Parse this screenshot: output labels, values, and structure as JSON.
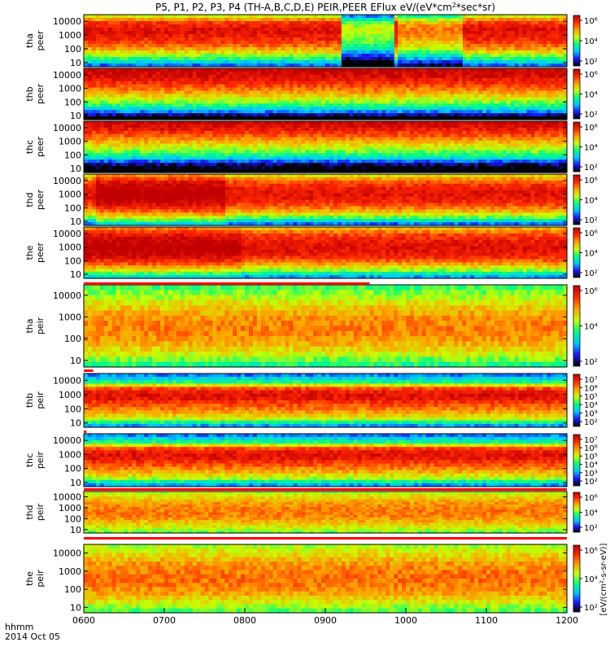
{
  "chart_data": {
    "type": "heatmap",
    "title": "P5, P1, P2, P3, P4 (TH-A,B,C,D,E) PEIR,PEER EFlux eV/(eV*cm²*sec*sr)",
    "title_main": "P5, P1, P2, P3, P4 (TH-A,B,C,D,E) PEIR,PEER EFlux eV/(eV*cm",
    "title_sup": "2",
    "title_end": "*sec*sr)",
    "xlabel_line1": "hhmm",
    "xlabel_line2": "2014 Oct 05",
    "x_ticks": [
      "0600",
      "0700",
      "0800",
      "0900",
      "1000",
      "1100",
      "1200"
    ],
    "xlim": [
      "06:00",
      "12:00"
    ],
    "y_ticks": [
      "10000",
      "1000",
      "100",
      "10"
    ],
    "ylim": [
      5,
      30000
    ],
    "yscale": "log",
    "colorbar_label": "[eV/(cm²-s-sr-eV)]",
    "colorbar_scale": "log",
    "colors": {
      "flux_scale": [
        "#000000",
        "#1a1aff",
        "#00c8ff",
        "#00ff80",
        "#c8ff00",
        "#ffa000",
        "#ff2800",
        "#c00000"
      ],
      "flag_bar": "#ff0000",
      "frame": "#000000"
    },
    "panels": [
      {
        "probe": "tha",
        "species": "peer",
        "colorbar_ticks": [
          "10⁶",
          "10⁴",
          "10²"
        ],
        "energy_profile": [
          1.5,
          3.2,
          4.6,
          5.7,
          6.3,
          6.6,
          6.1,
          4.2
        ],
        "events": [
          {
            "start": "09:14",
            "end": "09:50",
            "dy": -2.5
          },
          {
            "start": "09:56",
            "end": "10:42",
            "dy": -1.2
          }
        ]
      },
      {
        "probe": "thb",
        "species": "peer",
        "colorbar_ticks": [
          "10⁶",
          "10⁴",
          "10²"
        ],
        "energy_profile": [
          -0.5,
          1.8,
          3.3,
          4.3,
          5.2,
          6.0,
          6.6,
          6.9
        ],
        "events": []
      },
      {
        "probe": "thc",
        "species": "peer",
        "colorbar_ticks": [
          "10⁶",
          "10⁴",
          "10²"
        ],
        "energy_profile": [
          -0.5,
          0.5,
          2.6,
          3.7,
          4.6,
          5.5,
          6.3,
          6.9
        ],
        "events": []
      },
      {
        "probe": "thd",
        "species": "peer",
        "colorbar_ticks": [
          "10⁶",
          "10⁴",
          "10²"
        ],
        "energy_profile": [
          1.5,
          3.6,
          5.0,
          6.0,
          6.5,
          6.4,
          5.8,
          4.4
        ],
        "events": [
          {
            "start": "06:10",
            "end": "07:45",
            "dy": 0.8
          }
        ]
      },
      {
        "probe": "the",
        "species": "peer",
        "colorbar_ticks": [
          "10⁶",
          "10⁴",
          "10²"
        ],
        "energy_profile": [
          1.8,
          3.8,
          5.2,
          6.2,
          6.6,
          6.4,
          5.9,
          4.8
        ],
        "events": [
          {
            "start": "06:00",
            "end": "07:55",
            "dy": 0.6
          }
        ]
      },
      {
        "probe": "tha",
        "species": "peir",
        "colorbar_ticks": [
          "10⁶",
          "10⁴",
          "10²"
        ],
        "energy_profile": [
          3.0,
          4.2,
          4.9,
          5.3,
          5.2,
          4.7,
          4.0,
          3.3
        ],
        "events": []
      },
      {
        "probe": "thb",
        "species": "peir",
        "colorbar_ticks": [
          "10⁷",
          "10⁶",
          "10⁵",
          "10⁴",
          "10³",
          "10²"
        ],
        "energy_profile": [
          1.8,
          4.2,
          5.1,
          5.8,
          6.6,
          6.2,
          3.0,
          1.6
        ],
        "events": []
      },
      {
        "probe": "thc",
        "species": "peir",
        "colorbar_ticks": [
          "10⁷",
          "10⁶",
          "10⁵",
          "10⁴",
          "10³",
          "10²"
        ],
        "energy_profile": [
          1.8,
          4.0,
          5.0,
          5.8,
          6.6,
          6.2,
          3.0,
          1.6
        ],
        "events": []
      },
      {
        "probe": "thd",
        "species": "peir",
        "colorbar_ticks": [
          "10⁶",
          "10⁴",
          "10²"
        ],
        "energy_profile": [
          3.6,
          4.3,
          4.9,
          5.3,
          5.3,
          5.1,
          4.6,
          4.0
        ],
        "events": []
      },
      {
        "probe": "the",
        "species": "peir",
        "colorbar_ticks": [
          "10⁶",
          "10⁴",
          "10²"
        ],
        "energy_profile": [
          3.4,
          4.3,
          5.0,
          5.4,
          5.4,
          5.1,
          4.5,
          3.9
        ],
        "events": []
      }
    ],
    "flag_bars": [
      {
        "after_panel": 5,
        "start": "06:00",
        "end": "09:33"
      },
      {
        "after_panel": 6,
        "start": "06:00",
        "end": "06:07"
      },
      {
        "after_panel": 7,
        "start": "06:00",
        "end": "06:02"
      },
      {
        "after_panel": 8,
        "start": "06:00",
        "end": "12:00"
      },
      {
        "after_panel": 9,
        "start": "06:00",
        "end": "12:00"
      }
    ]
  }
}
